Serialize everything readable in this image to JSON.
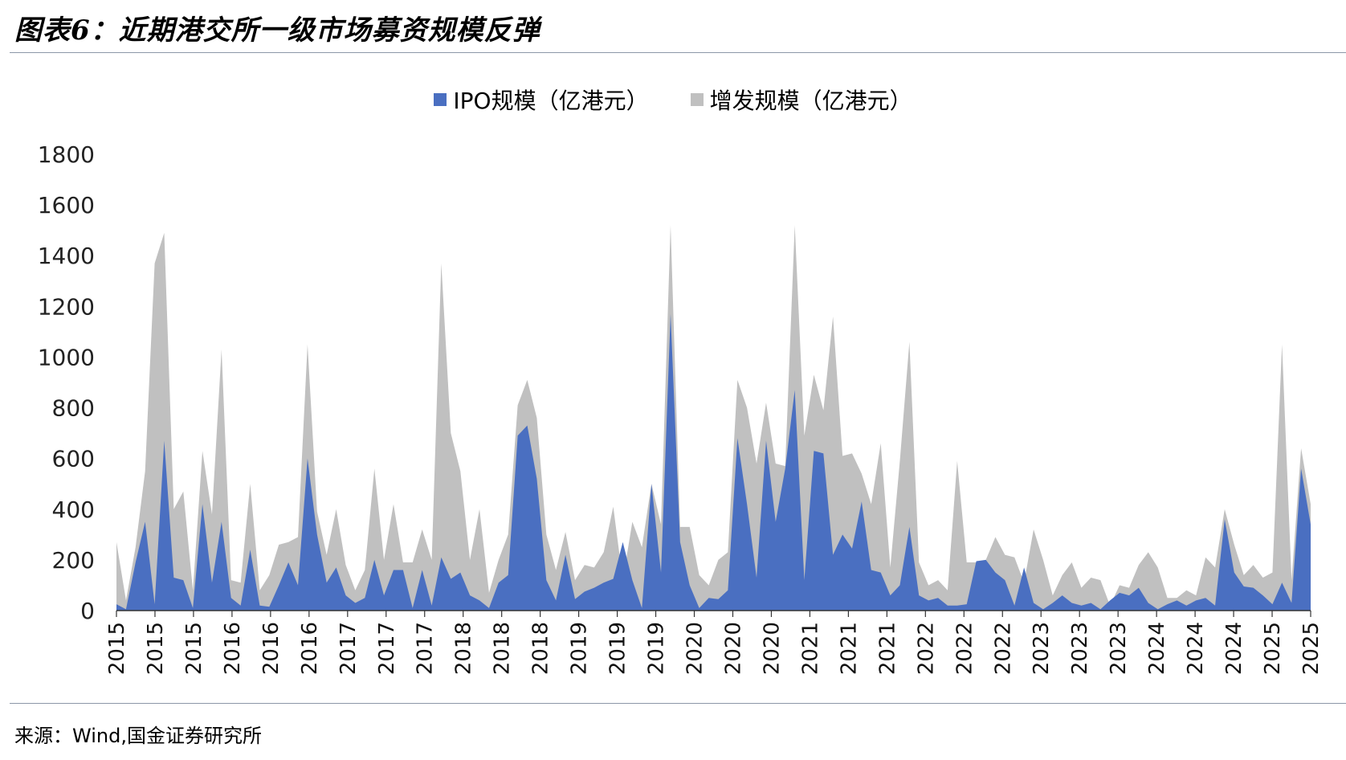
{
  "title": "图表6：近期港交所一级市场募资规模反弹",
  "source": "来源：Wind,国金证券研究所",
  "chart_data": {
    "type": "area",
    "stacked": false,
    "ylim": [
      0,
      1800
    ],
    "yticks": [
      0,
      200,
      400,
      600,
      800,
      1000,
      1200,
      1400,
      1600,
      1800
    ],
    "grid": false,
    "legend_position": "top-center",
    "x_tick_labels": [
      "2015",
      "2015",
      "2015",
      "2016",
      "2016",
      "2016",
      "2017",
      "2017",
      "2017",
      "2018",
      "2018",
      "2018",
      "2019",
      "2019",
      "2019",
      "2020",
      "2020",
      "2020",
      "2021",
      "2021",
      "2021",
      "2022",
      "2022",
      "2022",
      "2023",
      "2023",
      "2023",
      "2024",
      "2024",
      "2024",
      "2025",
      "2025"
    ],
    "series": [
      {
        "name": "IPO规模（亿港元）",
        "color": "#4a6fc1",
        "values": [
          25,
          5,
          190,
          350,
          25,
          670,
          130,
          120,
          10,
          420,
          110,
          350,
          50,
          20,
          240,
          20,
          15,
          100,
          190,
          100,
          600,
          300,
          110,
          170,
          60,
          30,
          50,
          200,
          60,
          160,
          160,
          10,
          160,
          20,
          210,
          125,
          150,
          60,
          40,
          10,
          110,
          140,
          690,
          730,
          520,
          120,
          40,
          220,
          45,
          75,
          90,
          110,
          125,
          270,
          120,
          10,
          500,
          150,
          1170,
          270,
          100,
          10,
          50,
          45,
          80,
          680,
          420,
          130,
          670,
          350,
          560,
          870,
          120,
          630,
          620,
          220,
          300,
          245,
          430,
          160,
          150,
          60,
          100,
          330,
          60,
          40,
          50,
          20,
          20,
          25,
          195,
          200,
          150,
          120,
          20,
          170,
          30,
          5,
          30,
          60,
          30,
          20,
          30,
          5,
          40,
          70,
          60,
          90,
          30,
          5,
          25,
          40,
          20,
          40,
          50,
          20,
          360,
          150,
          95,
          90,
          60,
          25,
          110,
          30,
          560,
          340
        ]
      },
      {
        "name": "增发规模（亿港元）",
        "color": "#c0c0c0",
        "values": [
          270,
          40,
          250,
          550,
          1370,
          1490,
          400,
          470,
          80,
          630,
          380,
          1030,
          120,
          110,
          500,
          80,
          140,
          260,
          270,
          290,
          1050,
          390,
          220,
          400,
          180,
          80,
          160,
          560,
          200,
          420,
          190,
          190,
          320,
          200,
          1370,
          700,
          550,
          200,
          400,
          70,
          200,
          300,
          810,
          910,
          760,
          300,
          160,
          310,
          120,
          180,
          170,
          230,
          410,
          120,
          350,
          250,
          500,
          340,
          1520,
          330,
          330,
          140,
          100,
          200,
          230,
          910,
          800,
          580,
          820,
          580,
          570,
          1520,
          690,
          930,
          790,
          1160,
          610,
          620,
          540,
          420,
          660,
          170,
          590,
          1060,
          190,
          100,
          120,
          80,
          590,
          190,
          190,
          200,
          290,
          220,
          210,
          110,
          320,
          200,
          60,
          140,
          190,
          90,
          130,
          120,
          20,
          100,
          90,
          180,
          230,
          170,
          50,
          50,
          80,
          60,
          210,
          170,
          400,
          260,
          140,
          180,
          130,
          150,
          1050,
          120,
          640,
          420
        ]
      }
    ]
  }
}
